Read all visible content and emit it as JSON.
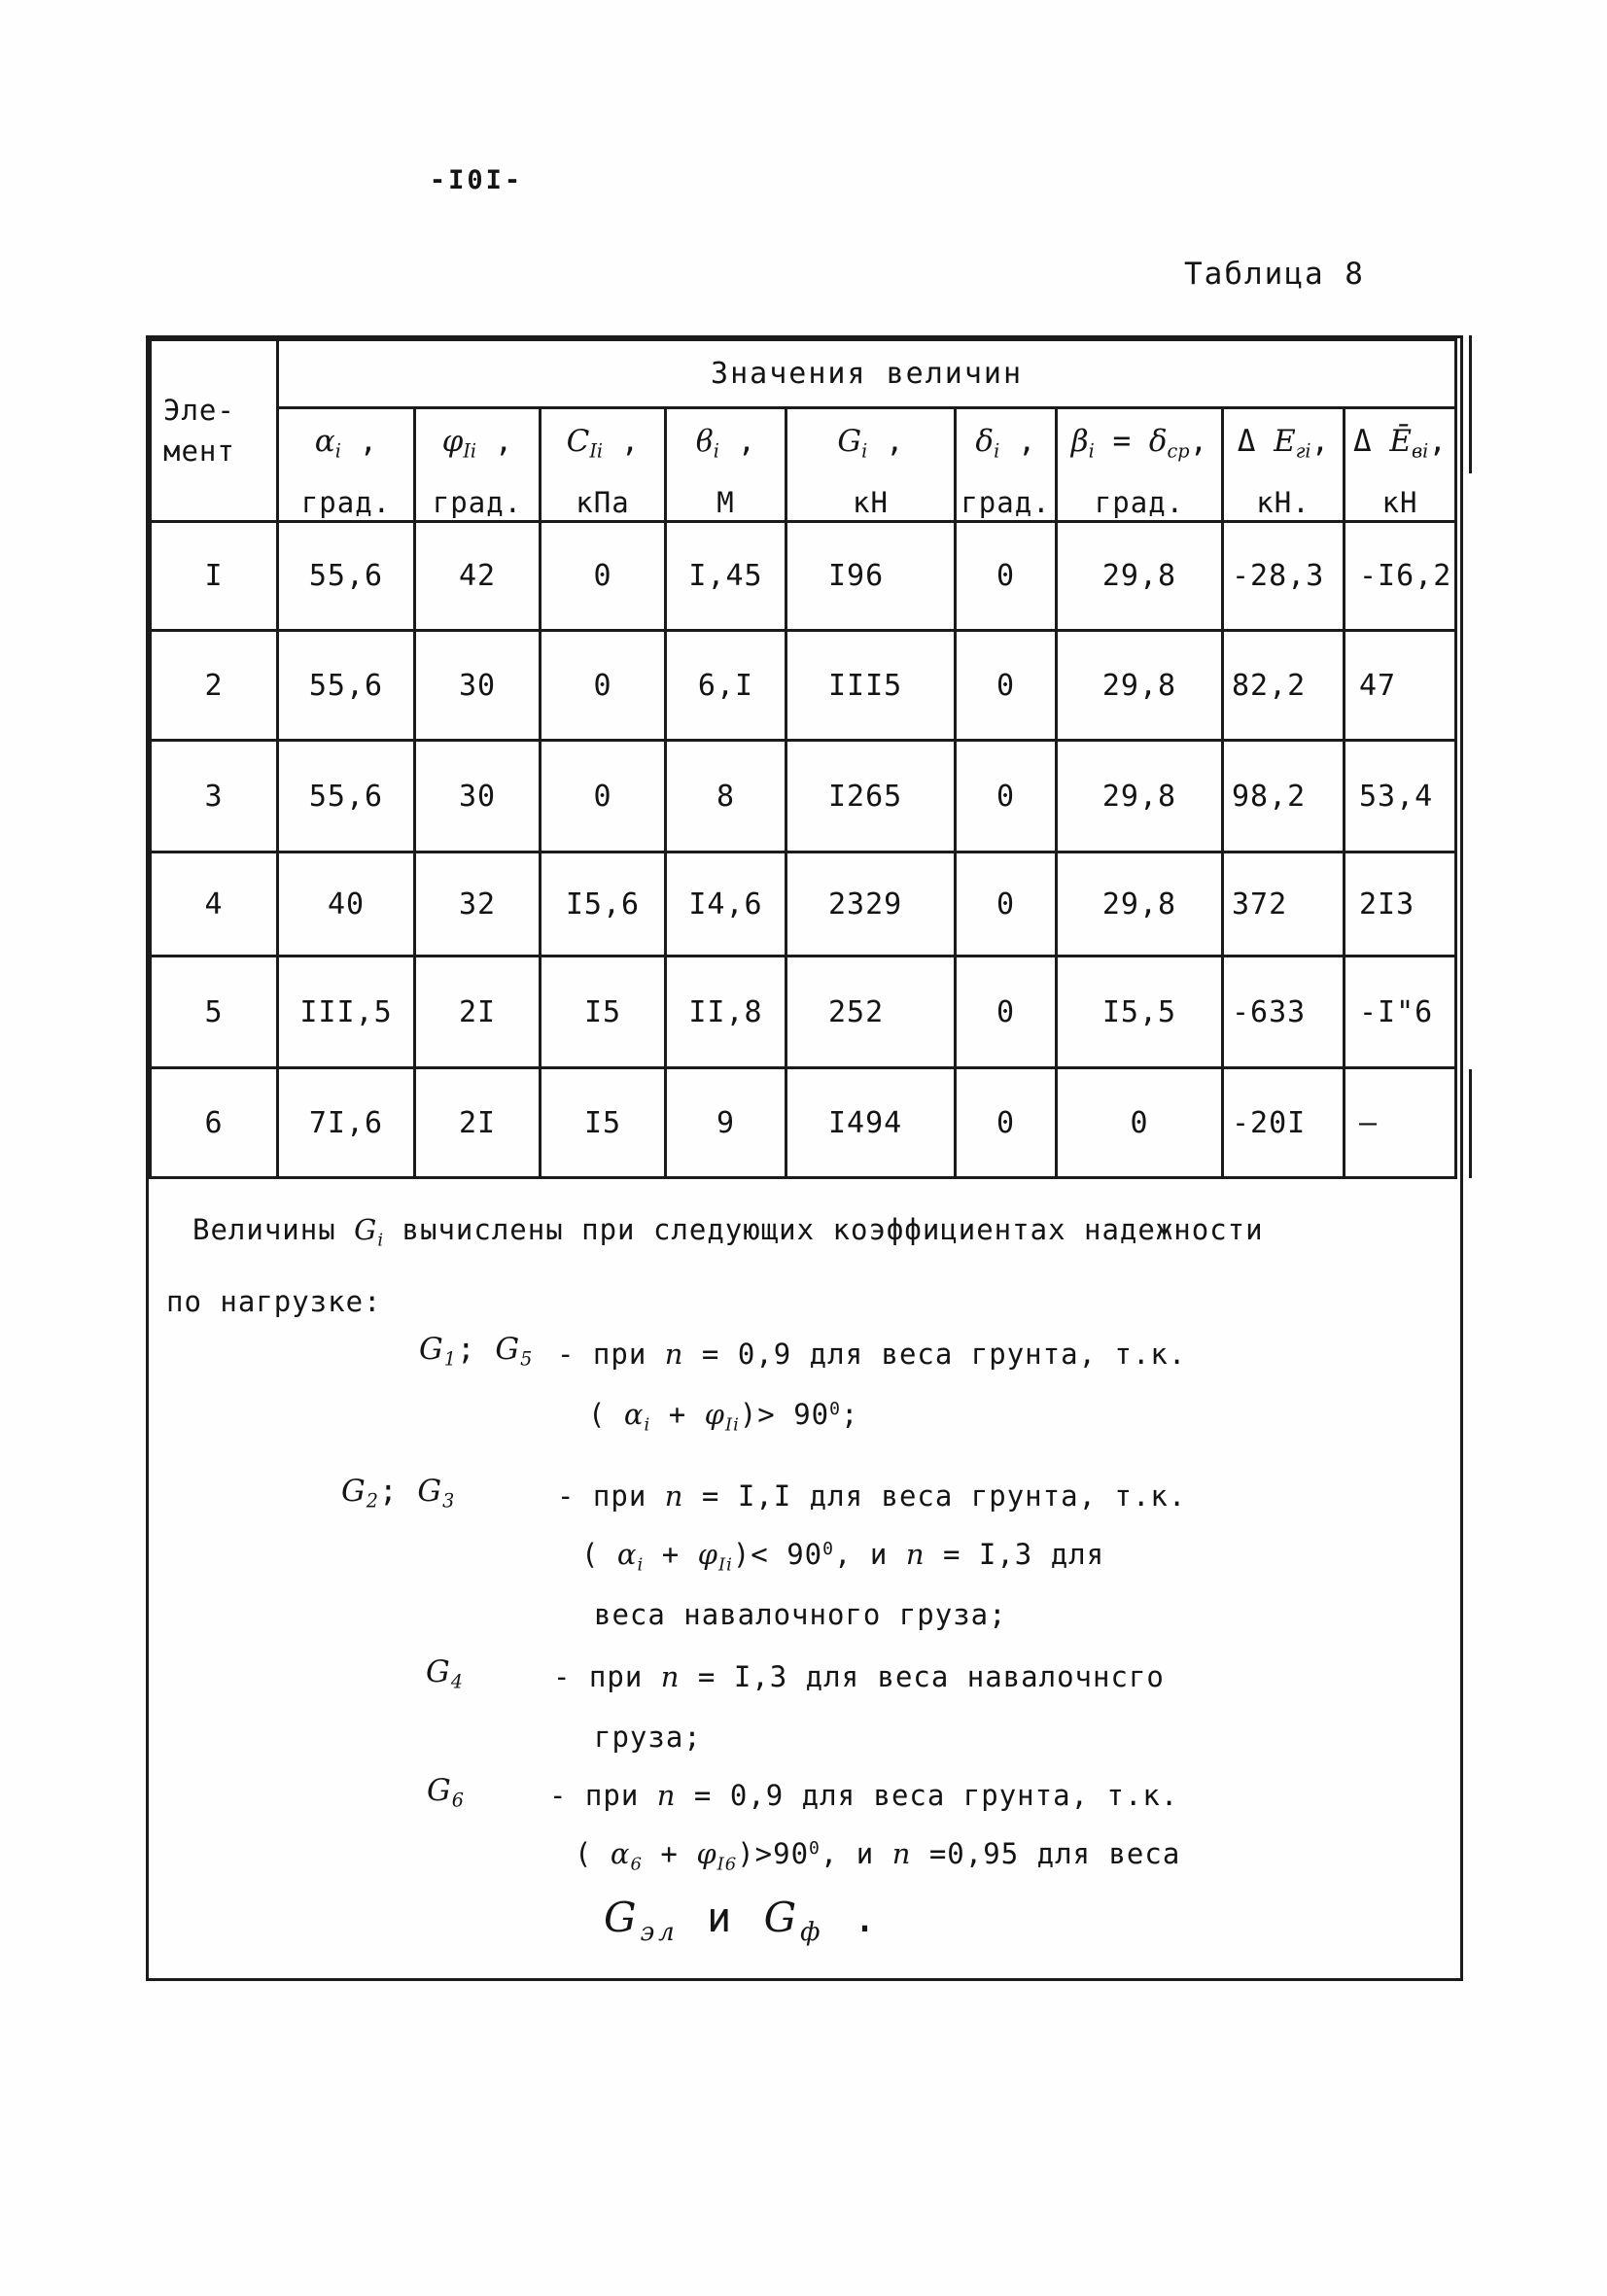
{
  "page": {
    "number": "-I0I-",
    "table_caption": "Таблица 8"
  },
  "table": {
    "element_header": {
      "line1": "Эле-",
      "line2": "мент"
    },
    "span_header": "Значения величин",
    "columns": [
      {
        "symbol": [
          {
            "t": "α",
            "i": true
          },
          {
            "t": "i",
            "v": "sub",
            "i": true
          },
          {
            "t": " ,"
          }
        ],
        "unit": "град."
      },
      {
        "symbol": [
          {
            "t": "φ",
            "i": true
          },
          {
            "t": "Ii",
            "v": "sub",
            "i": true
          },
          {
            "t": " ,"
          }
        ],
        "unit": "град."
      },
      {
        "symbol": [
          {
            "t": "C",
            "i": true
          },
          {
            "t": "Ii",
            "v": "sub",
            "i": true
          },
          {
            "t": " ,"
          }
        ],
        "unit": "кПа"
      },
      {
        "symbol": [
          {
            "t": "ϐ",
            "i": true
          },
          {
            "t": "i",
            "v": "sub",
            "i": true
          },
          {
            "t": " ,"
          }
        ],
        "unit": "М"
      },
      {
        "symbol": [
          {
            "t": "G",
            "i": true
          },
          {
            "t": "i",
            "v": "sub",
            "i": true
          },
          {
            "t": " ,"
          }
        ],
        "unit": "кН"
      },
      {
        "symbol": [
          {
            "t": "δ",
            "i": true
          },
          {
            "t": "i",
            "v": "sub",
            "i": true
          },
          {
            "t": " ,"
          }
        ],
        "unit": "град."
      },
      {
        "symbol": [
          {
            "t": "β",
            "i": true
          },
          {
            "t": "i",
            "v": "sub",
            "i": true
          },
          {
            "t": " = "
          },
          {
            "t": "δ",
            "i": true
          },
          {
            "t": "ср",
            "v": "sub",
            "i": true
          },
          {
            "t": ","
          }
        ],
        "unit": "град."
      },
      {
        "symbol": [
          {
            "t": "Δ "
          },
          {
            "t": "E",
            "i": true
          },
          {
            "t": "гi",
            "v": "sub",
            "i": true
          },
          {
            "t": ","
          }
        ],
        "unit": "кН."
      },
      {
        "symbol": [
          {
            "t": "Δ "
          },
          {
            "t": "Ē",
            "i": true
          },
          {
            "t": "вi",
            "v": "sub",
            "i": true
          },
          {
            "t": ","
          }
        ],
        "unit": "кН"
      }
    ],
    "rows": [
      [
        "I",
        "55,6",
        "42",
        "0",
        "I,45",
        "I96",
        "0",
        "29,8",
        "-28,3",
        "-I6,2"
      ],
      [
        "2",
        "55,6",
        "30",
        "0",
        "6,I",
        "III5",
        "0",
        "29,8",
        "82,2",
        "47"
      ],
      [
        "3",
        "55,6",
        "30",
        "0",
        "8",
        "I265",
        "0",
        "29,8",
        "98,2",
        "53,4"
      ],
      [
        "4",
        "40",
        "32",
        "I5,6",
        "I4,6",
        "2329",
        "0",
        "29,8",
        "372",
        "2I3"
      ],
      [
        "5",
        "III,5",
        "2I",
        "I5",
        "II,8",
        "252",
        "0",
        "I5,5",
        "-633",
        "-I\"6"
      ],
      [
        "6",
        "7I,6",
        "2I",
        "I5",
        "9",
        "I494",
        "0",
        "0",
        "-20I",
        "–"
      ]
    ]
  },
  "notes": {
    "intro_line1": [
      {
        "t": "Величины "
      },
      {
        "t": "G",
        "i": true
      },
      {
        "t": "i",
        "v": "sub",
        "i": true
      },
      {
        "t": " вычислены при следующих коэффициентах надежности"
      }
    ],
    "intro_line2": [
      {
        "t": "по нагрузке:"
      }
    ],
    "items": [
      {
        "label": [
          {
            "t": "G",
            "i": true
          },
          {
            "t": "1",
            "v": "sub",
            "i": true
          },
          {
            "t": "; "
          },
          {
            "t": "G",
            "i": true
          },
          {
            "t": "5",
            "v": "sub",
            "i": true
          }
        ],
        "line1": [
          {
            "t": "- при "
          },
          {
            "t": "n",
            "i": true
          },
          {
            "t": " = 0,9 для веса грунта, т.к."
          }
        ],
        "line2": [
          {
            "t": "( "
          },
          {
            "t": "α",
            "i": true
          },
          {
            "t": "i",
            "v": "sub",
            "i": true
          },
          {
            "t": " + "
          },
          {
            "t": "φ",
            "i": true
          },
          {
            "t": "Ii",
            "v": "sub",
            "i": true
          },
          {
            "t": ")> 90"
          },
          {
            "t": "0",
            "v": "sup"
          },
          {
            "t": ";"
          }
        ]
      },
      {
        "label": [
          {
            "t": "G",
            "i": true
          },
          {
            "t": "2",
            "v": "sub",
            "i": true
          },
          {
            "t": "; "
          },
          {
            "t": "G",
            "i": true
          },
          {
            "t": "3",
            "v": "sub",
            "i": true
          }
        ],
        "line1": [
          {
            "t": "- при "
          },
          {
            "t": "n",
            "i": true
          },
          {
            "t": " = I,I для веса  грунта, т.к."
          }
        ],
        "line2": [
          {
            "t": "( "
          },
          {
            "t": "α",
            "i": true
          },
          {
            "t": "i",
            "v": "sub",
            "i": true
          },
          {
            "t": " + "
          },
          {
            "t": "φ",
            "i": true
          },
          {
            "t": "Ii",
            "v": "sub",
            "i": true
          },
          {
            "t": ")< 90"
          },
          {
            "t": "0",
            "v": "sup"
          },
          {
            "t": ", и  "
          },
          {
            "t": "n",
            "i": true
          },
          {
            "t": " = I,3 для"
          }
        ],
        "line3": [
          {
            "t": "веса навалочного груза;"
          }
        ]
      },
      {
        "label": [
          {
            "t": "G",
            "i": true
          },
          {
            "t": "4",
            "v": "sub",
            "i": true
          }
        ],
        "line1": [
          {
            "t": "- при "
          },
          {
            "t": "n",
            "i": true
          },
          {
            "t": " = I,3 для веса навалочнсго"
          }
        ],
        "line2": [
          {
            "t": "груза;"
          }
        ]
      },
      {
        "label": [
          {
            "t": "G",
            "i": true
          },
          {
            "t": "6",
            "v": "sub",
            "i": true
          }
        ],
        "line1": [
          {
            "t": "- при "
          },
          {
            "t": "n",
            "i": true
          },
          {
            "t": " = 0,9 для веса грунта, т.к."
          }
        ],
        "line2": [
          {
            "t": "( "
          },
          {
            "t": "α",
            "i": true
          },
          {
            "t": "6",
            "v": "sub",
            "i": true
          },
          {
            "t": " + "
          },
          {
            "t": "φ",
            "i": true
          },
          {
            "t": "I6",
            "v": "sub",
            "i": true
          },
          {
            "t": ")>90"
          },
          {
            "t": "0",
            "v": "sup"
          },
          {
            "t": ", и  "
          },
          {
            "t": "n",
            "i": true
          },
          {
            "t": " =0,95 для веса"
          }
        ]
      }
    ],
    "final_line": [
      {
        "t": "G",
        "i": true
      },
      {
        "t": "эл",
        "v": "sub",
        "i": true
      },
      {
        "t": "  и  "
      },
      {
        "t": "G",
        "i": true
      },
      {
        "t": "ф",
        "v": "sub",
        "i": true
      },
      {
        "t": " ."
      }
    ]
  }
}
